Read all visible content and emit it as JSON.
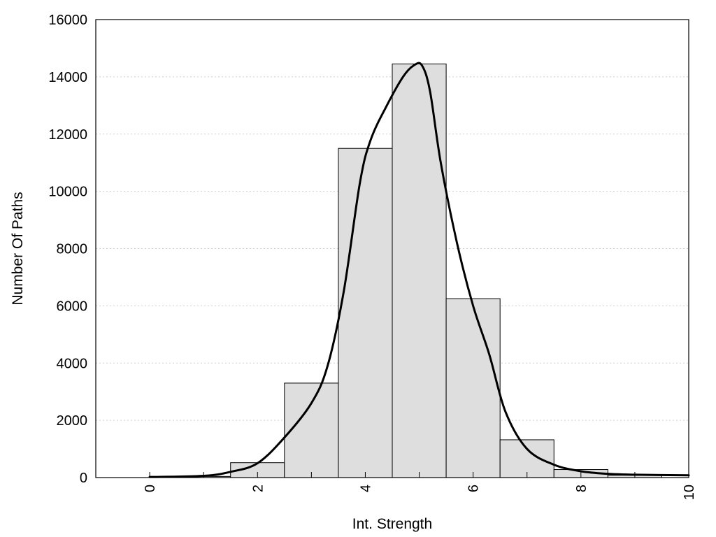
{
  "chart_data": {
    "type": "bar",
    "title": "",
    "xlabel": "Int. Strength",
    "ylabel": "Number Of Paths",
    "xlim": [
      -1,
      10
    ],
    "ylim": [
      0,
      16000
    ],
    "grid": "horizontal dotted",
    "x_ticks": [
      "0",
      "2",
      "4",
      "6",
      "8",
      "10"
    ],
    "y_ticks": [
      "0",
      "2000",
      "4000",
      "6000",
      "8000",
      "10000",
      "12000",
      "14000",
      "16000"
    ],
    "bar_width": 1,
    "bars": [
      {
        "x": 0,
        "value": 0
      },
      {
        "x": 1,
        "value": 40
      },
      {
        "x": 2,
        "value": 520
      },
      {
        "x": 3,
        "value": 3300
      },
      {
        "x": 4,
        "value": 11500
      },
      {
        "x": 5,
        "value": 14450
      },
      {
        "x": 6,
        "value": 6250
      },
      {
        "x": 7,
        "value": 1320
      },
      {
        "x": 8,
        "value": 280
      },
      {
        "x": 9,
        "value": 80
      }
    ],
    "series": [
      {
        "type": "line",
        "points": [
          [
            0,
            20
          ],
          [
            1,
            60
          ],
          [
            1.5,
            200
          ],
          [
            2,
            500
          ],
          [
            2.5,
            1400
          ],
          [
            3,
            2600
          ],
          [
            3.3,
            3900
          ],
          [
            3.6,
            6500
          ],
          [
            3.9,
            10300
          ],
          [
            4.1,
            11800
          ],
          [
            4.4,
            13000
          ],
          [
            4.7,
            14000
          ],
          [
            4.9,
            14400
          ],
          [
            5.05,
            14400
          ],
          [
            5.2,
            13500
          ],
          [
            5.4,
            11000
          ],
          [
            5.7,
            8200
          ],
          [
            6,
            6000
          ],
          [
            6.3,
            4300
          ],
          [
            6.6,
            2300
          ],
          [
            7,
            1000
          ],
          [
            7.5,
            450
          ],
          [
            8,
            220
          ],
          [
            8.5,
            130
          ],
          [
            9,
            100
          ],
          [
            10,
            80
          ]
        ]
      }
    ]
  }
}
